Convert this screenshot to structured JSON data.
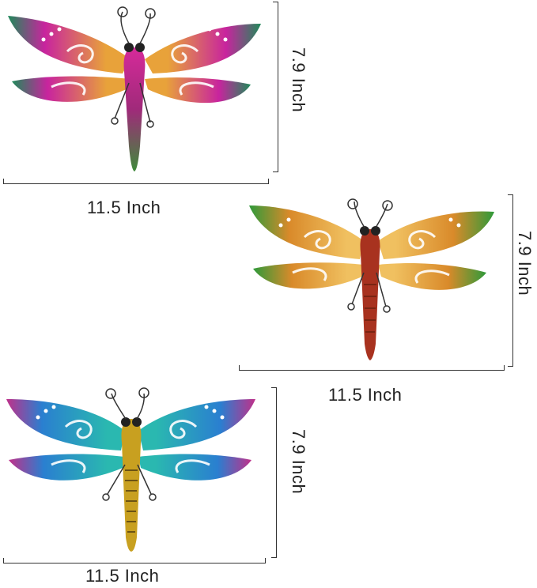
{
  "products": [
    {
      "id": "pink",
      "width_label": "11.5 Inch",
      "height_label": "7.9 Inch",
      "colors": {
        "wing_main": "#c8249e",
        "wing_mid": "#e8a23a",
        "wing_tip": "#1f8a5a",
        "body": "#c8249e",
        "tail": "#3e8a3a"
      }
    },
    {
      "id": "orange",
      "width_label": "11.5 Inch",
      "height_label": "7.9 Inch",
      "colors": {
        "wing_main": "#d98a2a",
        "wing_mid": "#f0c060",
        "wing_tip": "#2f9a3a",
        "body": "#8a2a1a",
        "tail": "#a8321f"
      }
    },
    {
      "id": "blue",
      "width_label": "11.5 Inch",
      "height_label": "7.9 Inch",
      "colors": {
        "wing_main": "#2a7fd0",
        "wing_mid": "#2ab8b0",
        "wing_tip": "#c0308a",
        "body": "#c8a020",
        "tail": "#b09020"
      }
    }
  ]
}
